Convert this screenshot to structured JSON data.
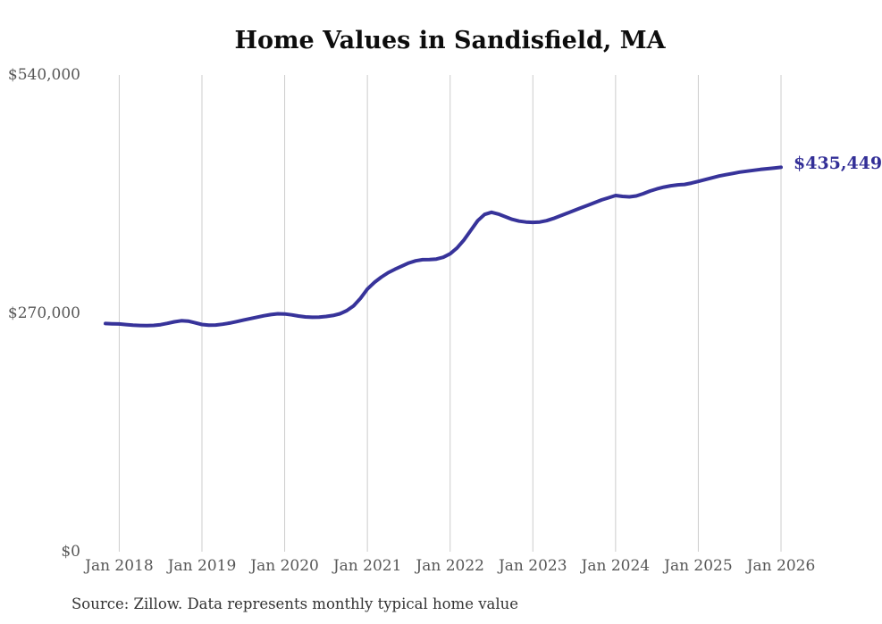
{
  "chart": {
    "title": "Home Values in Sandisfield, MA",
    "end_label": "$435,449",
    "source_note": "Source: Zillow. Data represents monthly typical home value",
    "colors": {
      "line": "#37339a",
      "end_label": "#332f97",
      "grid": "#cccccc",
      "axis_text": "#575757",
      "title_text": "#0d0d0d",
      "source_text": "#333333",
      "background": "#ffffff"
    }
  },
  "chart_data": {
    "type": "line",
    "title": "Home Values in Sandisfield, MA",
    "xlabel": "",
    "ylabel": "",
    "unit": "USD",
    "x_start_month": "2017-11",
    "x_end_month": "2026-01",
    "x_cadence": "monthly",
    "ylim": [
      0,
      540000
    ],
    "y_ticks": [
      {
        "label": "$0",
        "value": 0
      },
      {
        "label": "$270,000",
        "value": 270000
      },
      {
        "label": "$540,000",
        "value": 540000
      }
    ],
    "x_ticks": [
      {
        "label": "Jan 2018",
        "month_index": 2
      },
      {
        "label": "Jan 2019",
        "month_index": 14
      },
      {
        "label": "Jan 2020",
        "month_index": 26
      },
      {
        "label": "Jan 2021",
        "month_index": 38
      },
      {
        "label": "Jan 2022",
        "month_index": 50
      },
      {
        "label": "Jan 2023",
        "month_index": 62
      },
      {
        "label": "Jan 2024",
        "month_index": 74
      },
      {
        "label": "Jan 2025",
        "month_index": 86
      },
      {
        "label": "Jan 2026",
        "month_index": 98
      }
    ],
    "grid": "vertical-only",
    "legend": "none",
    "annotation": {
      "text": "$435,449",
      "at_month_index": 98,
      "value": 435449
    },
    "series": [
      {
        "name": "Typical home value",
        "values": [
          258500,
          258200,
          258000,
          257300,
          256600,
          256200,
          256000,
          256300,
          257200,
          258700,
          260400,
          261600,
          261200,
          259300,
          257400,
          256600,
          256800,
          257700,
          259000,
          260600,
          262300,
          264000,
          265700,
          267300,
          268600,
          269500,
          269300,
          268300,
          267000,
          266000,
          265600,
          265800,
          266500,
          267600,
          269500,
          273000,
          278500,
          287000,
          297500,
          305000,
          311000,
          316000,
          320000,
          323500,
          327000,
          329500,
          330800,
          331000,
          331500,
          333500,
          337500,
          344000,
          353000,
          364000,
          375000,
          382000,
          384500,
          382500,
          379500,
          376500,
          374500,
          373500,
          373000,
          373500,
          375000,
          377500,
          380500,
          383500,
          386500,
          389500,
          392500,
          395500,
          398500,
          401000,
          403500,
          402500,
          402000,
          403000,
          405500,
          408500,
          411000,
          413000,
          414500,
          415500,
          416000,
          417500,
          419500,
          421500,
          423500,
          425500,
          427000,
          428500,
          430000,
          431000,
          432000,
          433000,
          433800,
          434600,
          435449
        ]
      }
    ]
  }
}
